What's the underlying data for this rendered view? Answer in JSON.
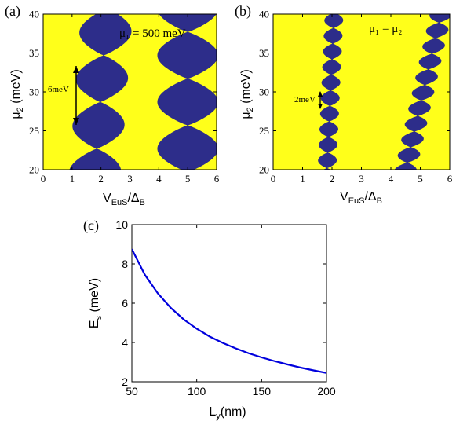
{
  "colors": {
    "background_region": "#ffff1a",
    "lobe": "#2d2d8a",
    "curve": "#0000dd",
    "axis": "#000000"
  },
  "panels": {
    "a": {
      "label": "(a)",
      "annotation": "μ₁ = 500 meV",
      "arrow_label": "6meV"
    },
    "b": {
      "label": "(b)",
      "annotation": "μ₁ = μ₂",
      "arrow_label": "2meV"
    },
    "c": {
      "label": "(c)"
    }
  },
  "chart_data": [
    {
      "type": "heatmap",
      "panel": "a",
      "xlabel": {
        "main": "V",
        "sub": "EuS",
        "mid": "/Δ",
        "sub2": "B"
      },
      "ylabel": {
        "main": "μ",
        "sub": "2",
        "rest": " (meV)"
      },
      "xlim": [
        0,
        6
      ],
      "ylim": [
        20,
        40
      ],
      "xticks": [
        0,
        1,
        2,
        3,
        4,
        5,
        6
      ],
      "yticks": [
        20,
        25,
        30,
        35,
        40
      ],
      "lobe_period_meV": 6,
      "annotation": "μ₁ = 500 meV"
    },
    {
      "type": "heatmap",
      "panel": "b",
      "xlabel": {
        "main": "V",
        "sub": "EuS",
        "mid": "/Δ",
        "sub2": "B"
      },
      "ylabel": {
        "main": "μ",
        "sub": "2",
        "rest": " (meV)"
      },
      "xlim": [
        0,
        6
      ],
      "ylim": [
        20,
        40
      ],
      "xticks": [
        0,
        1,
        2,
        3,
        4,
        5,
        6
      ],
      "yticks": [
        20,
        25,
        30,
        35,
        40
      ],
      "lobe_period_meV": 2,
      "annotation": "μ₁ = μ₂"
    },
    {
      "type": "line",
      "panel": "c",
      "xlabel": {
        "main": "L",
        "sub": "y",
        "rest": "(nm)"
      },
      "ylabel": {
        "main": "E",
        "sub": "s",
        "rest": " (meV)"
      },
      "xlim": [
        50,
        200
      ],
      "ylim": [
        2,
        10
      ],
      "xticks": [
        50,
        100,
        150,
        200
      ],
      "yticks": [
        2,
        4,
        6,
        8,
        10
      ],
      "series": [
        {
          "x": [
            50,
            60,
            70,
            80,
            90,
            100,
            110,
            120,
            130,
            140,
            150,
            160,
            170,
            180,
            190,
            200
          ],
          "y": [
            8.75,
            7.45,
            6.5,
            5.76,
            5.17,
            4.7,
            4.3,
            3.98,
            3.7,
            3.45,
            3.24,
            3.05,
            2.88,
            2.72,
            2.58,
            2.45
          ]
        }
      ]
    }
  ]
}
